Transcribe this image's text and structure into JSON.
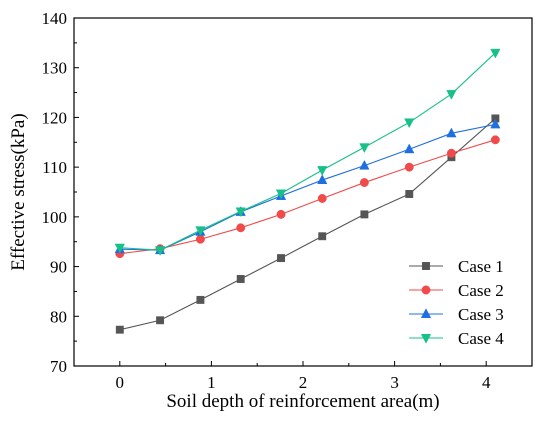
{
  "chart_data": {
    "type": "line",
    "title": "",
    "xlabel": "Soil depth of reinforcement area(m)",
    "ylabel": "Effective stress(kPa)",
    "xlim": [
      -0.5,
      4.5
    ],
    "ylim": [
      70,
      140
    ],
    "xticks": [
      0,
      1,
      2,
      3,
      4
    ],
    "yticks": [
      70,
      80,
      90,
      100,
      110,
      120,
      130,
      140
    ],
    "grid": false,
    "legend_position": "bottom-right",
    "x": [
      0,
      0.44,
      0.88,
      1.32,
      1.76,
      2.21,
      2.67,
      3.16,
      3.62,
      4.1
    ],
    "series": [
      {
        "name": "Case 1",
        "color": "#555555",
        "marker": "square",
        "values": [
          77.3,
          79.2,
          83.3,
          87.5,
          91.7,
          96.1,
          100.5,
          104.6,
          112.0,
          119.8
        ]
      },
      {
        "name": "Case 2",
        "color": "#f04a4a",
        "marker": "circle",
        "values": [
          92.6,
          93.6,
          95.5,
          97.8,
          100.5,
          103.7,
          106.9,
          110.0,
          112.8,
          115.5
        ]
      },
      {
        "name": "Case 3",
        "color": "#1f6fe0",
        "marker": "triangle-up",
        "values": [
          93.5,
          93.3,
          97.0,
          101.0,
          104.2,
          107.4,
          110.3,
          113.6,
          116.8,
          118.6
        ]
      },
      {
        "name": "Case 4",
        "color": "#17c089",
        "marker": "triangle-down",
        "values": [
          93.8,
          93.3,
          97.3,
          101.1,
          104.7,
          109.4,
          114.0,
          119.0,
          124.7,
          133.0
        ]
      }
    ]
  }
}
